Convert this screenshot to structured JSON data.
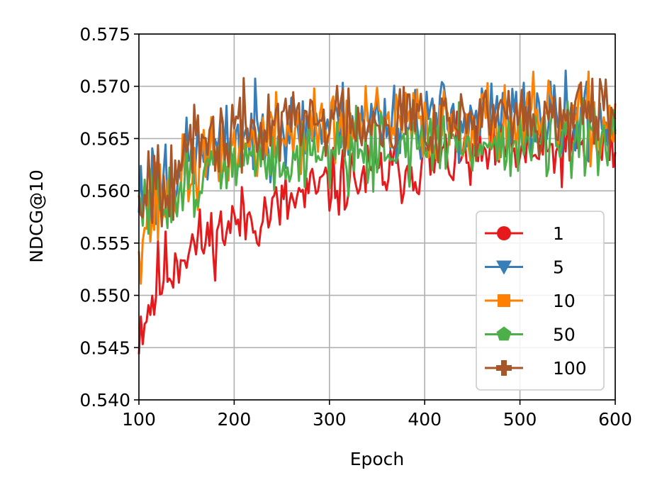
{
  "chart_data": {
    "type": "line",
    "xlabel": "Epoch",
    "ylabel": "NDCG@10",
    "xlim": [
      100,
      600
    ],
    "ylim": [
      0.54,
      0.575
    ],
    "xticks": [
      100,
      200,
      300,
      400,
      500,
      600
    ],
    "xtick_labels": [
      "100",
      "200",
      "300",
      "400",
      "500",
      "600"
    ],
    "yticks": [
      0.54,
      0.545,
      0.55,
      0.555,
      0.56,
      0.565,
      0.57,
      0.575
    ],
    "ytick_labels": [
      "0.540",
      "0.545",
      "0.550",
      "0.555",
      "0.560",
      "0.565",
      "0.570",
      "0.575"
    ],
    "grid": true,
    "legend": {
      "position": "lower-right"
    },
    "series": [
      {
        "name": "1",
        "color": "#e41a1c",
        "marker": "circle",
        "anchors": [
          [
            100,
            0.547
          ],
          [
            110,
            0.549
          ],
          [
            125,
            0.552
          ],
          [
            150,
            0.5545
          ],
          [
            175,
            0.5555
          ],
          [
            200,
            0.557
          ],
          [
            225,
            0.5575
          ],
          [
            250,
            0.5585
          ],
          [
            275,
            0.5595
          ],
          [
            300,
            0.5605
          ],
          [
            325,
            0.561
          ],
          [
            350,
            0.5615
          ],
          [
            375,
            0.562
          ],
          [
            400,
            0.5625
          ],
          [
            425,
            0.563
          ],
          [
            450,
            0.563
          ],
          [
            475,
            0.5635
          ],
          [
            500,
            0.5635
          ],
          [
            525,
            0.5635
          ],
          [
            550,
            0.564
          ],
          [
            575,
            0.564
          ],
          [
            600,
            0.564
          ]
        ],
        "amp": 0.0016,
        "seed": 11
      },
      {
        "name": "5",
        "color": "#377eb8",
        "marker": "triangle-down",
        "anchors": [
          [
            100,
            0.5595
          ],
          [
            125,
            0.5615
          ],
          [
            150,
            0.563
          ],
          [
            200,
            0.565
          ],
          [
            250,
            0.566
          ],
          [
            300,
            0.5665
          ],
          [
            350,
            0.5668
          ],
          [
            400,
            0.567
          ],
          [
            450,
            0.567
          ],
          [
            500,
            0.567
          ],
          [
            550,
            0.5668
          ],
          [
            600,
            0.5668
          ]
        ],
        "amp": 0.0019,
        "seed": 23
      },
      {
        "name": "10",
        "color": "#ff7f00",
        "marker": "square",
        "anchors": [
          [
            100,
            0.5565
          ],
          [
            110,
            0.5575
          ],
          [
            125,
            0.559
          ],
          [
            150,
            0.5615
          ],
          [
            200,
            0.564
          ],
          [
            250,
            0.5655
          ],
          [
            300,
            0.566
          ],
          [
            350,
            0.5663
          ],
          [
            400,
            0.5665
          ],
          [
            450,
            0.5665
          ],
          [
            500,
            0.5665
          ],
          [
            550,
            0.5665
          ],
          [
            600,
            0.5665
          ]
        ],
        "amp": 0.0019,
        "seed": 37
      },
      {
        "name": "50",
        "color": "#4daf4a",
        "marker": "pentagon",
        "anchors": [
          [
            100,
            0.558
          ],
          [
            125,
            0.5595
          ],
          [
            150,
            0.5612
          ],
          [
            200,
            0.5625
          ],
          [
            250,
            0.5632
          ],
          [
            300,
            0.5638
          ],
          [
            350,
            0.564
          ],
          [
            400,
            0.5645
          ],
          [
            450,
            0.5645
          ],
          [
            500,
            0.5645
          ],
          [
            550,
            0.5645
          ],
          [
            600,
            0.5645
          ]
        ],
        "amp": 0.0017,
        "seed": 51
      },
      {
        "name": "100",
        "color": "#a65628",
        "marker": "plus",
        "anchors": [
          [
            100,
            0.5605
          ],
          [
            125,
            0.562
          ],
          [
            150,
            0.5635
          ],
          [
            200,
            0.5655
          ],
          [
            250,
            0.5665
          ],
          [
            300,
            0.567
          ],
          [
            350,
            0.567
          ],
          [
            400,
            0.567
          ],
          [
            450,
            0.5668
          ],
          [
            500,
            0.5668
          ],
          [
            550,
            0.5668
          ],
          [
            600,
            0.5668
          ]
        ],
        "amp": 0.0019,
        "seed": 67
      }
    ]
  }
}
